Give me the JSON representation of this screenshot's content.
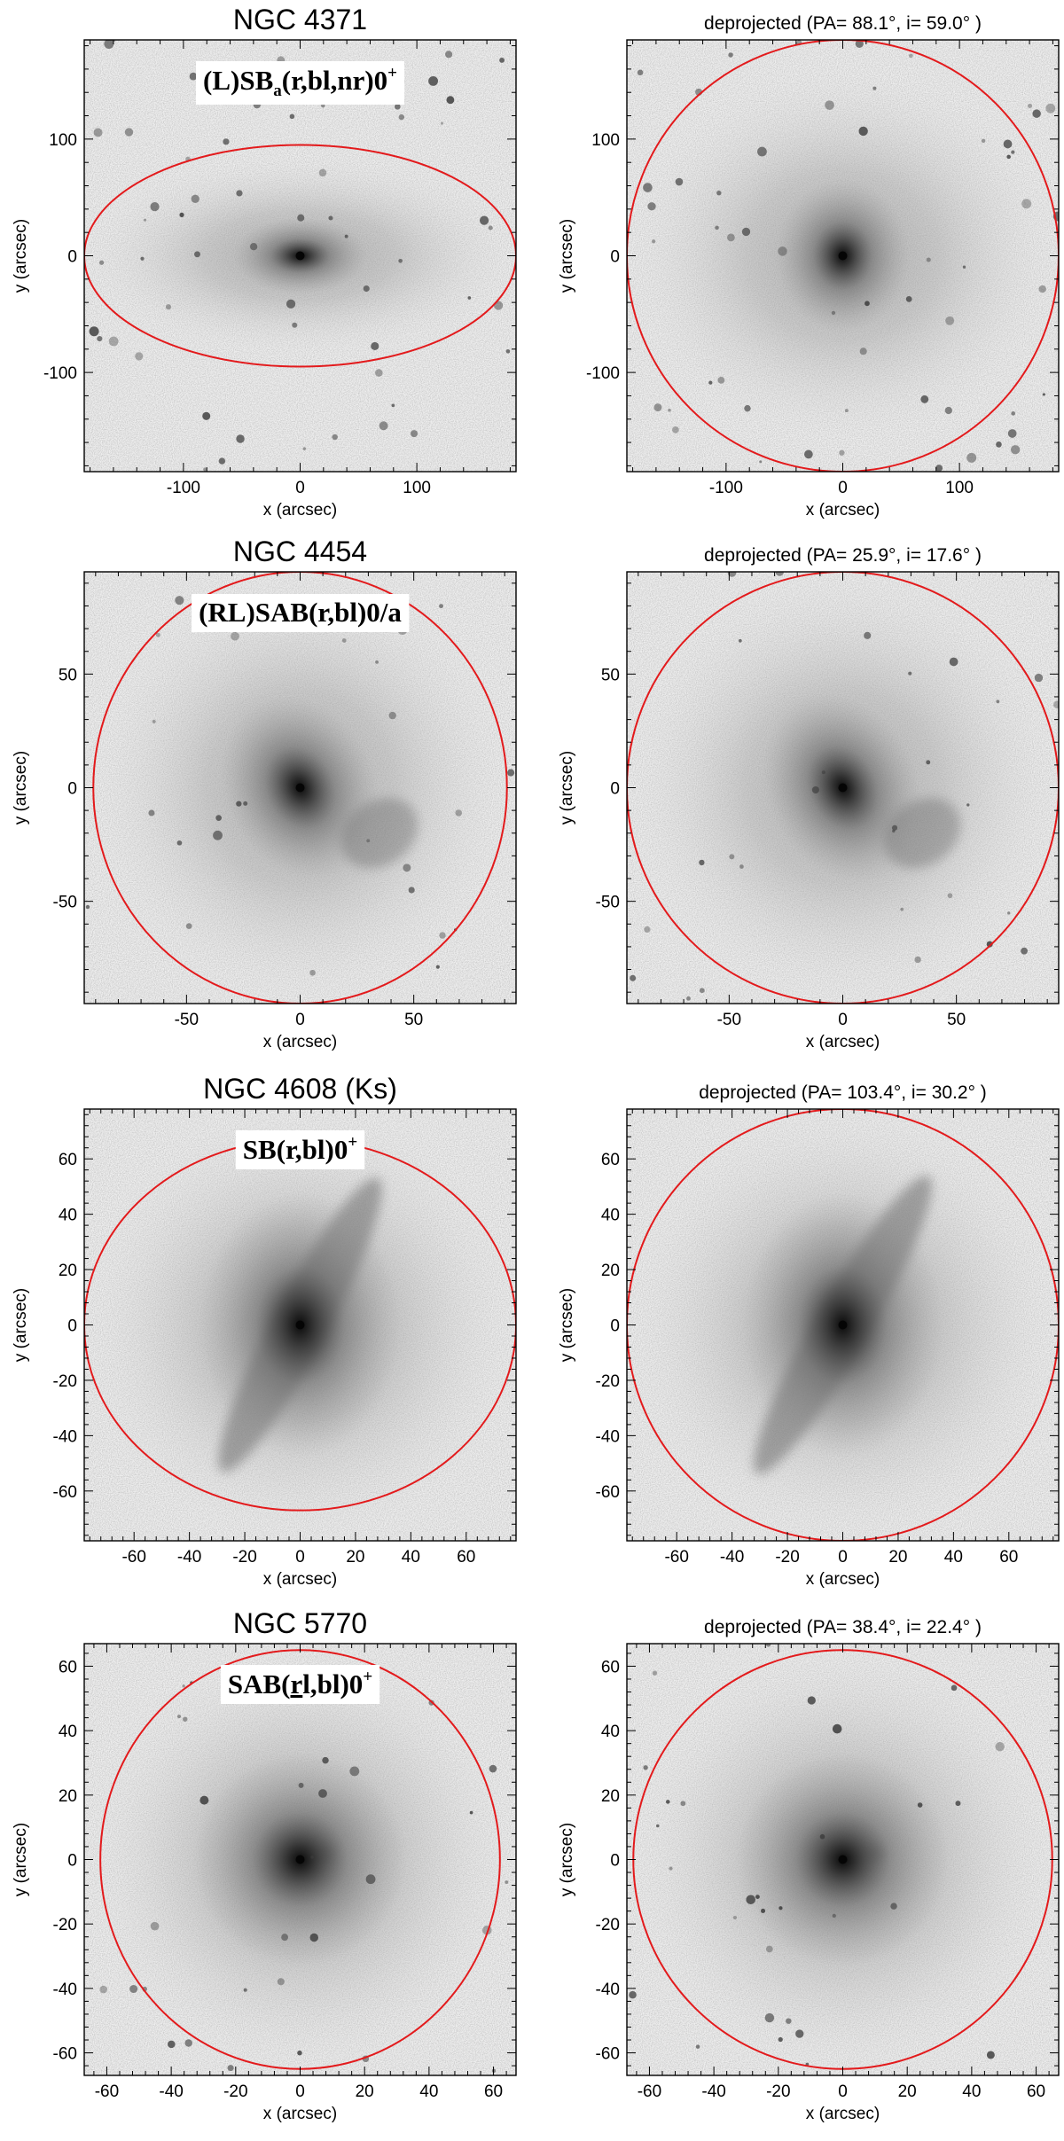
{
  "panels": [
    {
      "title": "NGC 4371",
      "hubble": {
        "pre": "(L)SB",
        "sub": "a",
        "mid": "(r,bl,nr)0",
        "sup": "+"
      },
      "x_label": "x (arcsec)",
      "y_label": "y (arcsec)",
      "range": 185,
      "ticks": [
        -100,
        0,
        100
      ],
      "ellipse": {
        "rx": 185,
        "ry": 95
      }
    },
    {
      "title": "deprojected  (PA= 88.1°, i= 59.0° )",
      "x_label": "x (arcsec)",
      "y_label": "y (arcsec)",
      "range": 185,
      "ticks": [
        -100,
        0,
        100
      ],
      "ellipse": {
        "rx": 185,
        "ry": 185
      }
    },
    {
      "title": "NGC 4454",
      "hubble": {
        "pre": "(RL)SAB(r,bl)0/a"
      },
      "x_label": "x (arcsec)",
      "y_label": "y (arcsec)",
      "range": 95,
      "ticks": [
        -50,
        0,
        50
      ],
      "ellipse": {
        "rx": 91,
        "ry": 95
      }
    },
    {
      "title": "deprojected  (PA= 25.9°, i= 17.6° )",
      "x_label": "x (arcsec)",
      "y_label": "y (arcsec)",
      "range": 95,
      "ticks": [
        -50,
        0,
        50
      ],
      "ellipse": {
        "rx": 95,
        "ry": 95
      }
    },
    {
      "title": "NGC 4608   (Ks)",
      "hubble": {
        "pre": "SB(r,bl)0",
        "sup": "+"
      },
      "x_label": "x (arcsec)",
      "y_label": "y (arcsec)",
      "range": 78,
      "ticks": [
        -60,
        -40,
        -20,
        0,
        20,
        40,
        60
      ],
      "ellipse": {
        "rx": 78,
        "ry": 67
      }
    },
    {
      "title": "deprojected  (PA= 103.4°, i= 30.2° )",
      "x_label": "x (arcsec)",
      "y_label": "y (arcsec)",
      "range": 78,
      "ticks": [
        -60,
        -40,
        -20,
        0,
        20,
        40,
        60
      ],
      "ellipse": {
        "rx": 78,
        "ry": 78
      }
    },
    {
      "title": "NGC 5770",
      "hubble": {
        "pre": "SAB(",
        "underline": "r",
        "mid": "l,bl)0",
        "sup": "+"
      },
      "x_label": "x (arcsec)",
      "y_label": "y (arcsec)",
      "range": 67,
      "ticks": [
        -60,
        -40,
        -20,
        0,
        20,
        40,
        60
      ],
      "ellipse": {
        "rx": 62,
        "ry": 65
      }
    },
    {
      "title": "deprojected  (PA= 38.4°, i= 22.4° )",
      "x_label": "x (arcsec)",
      "y_label": "y (arcsec)",
      "range": 67,
      "ticks": [
        -60,
        -40,
        -20,
        0,
        20,
        40,
        60
      ],
      "ellipse": {
        "rx": 65,
        "ry": 65
      }
    }
  ],
  "colors": {
    "ellipse": "#e31a1c",
    "axis": "#000000"
  }
}
